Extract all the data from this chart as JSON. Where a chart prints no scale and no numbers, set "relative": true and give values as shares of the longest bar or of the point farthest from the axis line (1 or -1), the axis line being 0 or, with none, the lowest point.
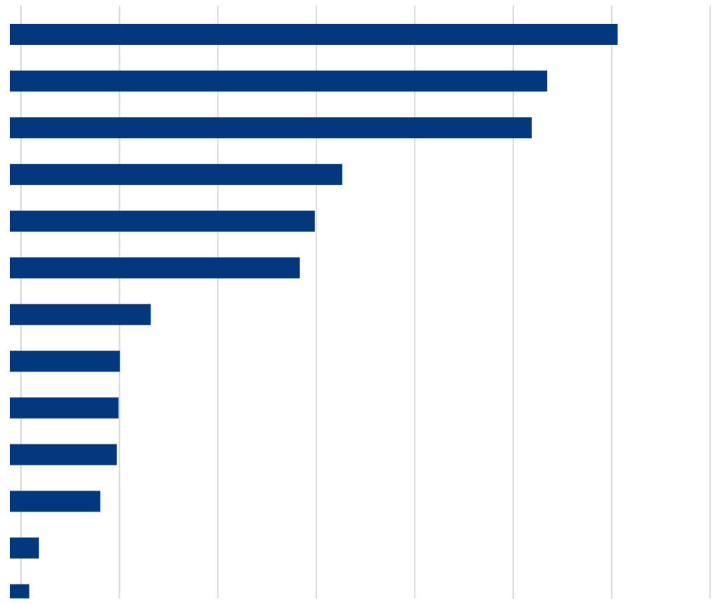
{
  "chart_data": {
    "type": "bar",
    "orientation": "horizontal",
    "relative": true,
    "grid": "x",
    "color": "#03387f",
    "categories": [
      null,
      null,
      null,
      null,
      null,
      null,
      null,
      null,
      null,
      null,
      null,
      null,
      null
    ],
    "values": [
      1,
      0.884,
      0.859,
      0.547,
      0.502,
      0.477,
      0.232,
      0.181,
      0.179,
      0.176,
      0.149,
      0.048,
      0.032
    ]
  }
}
